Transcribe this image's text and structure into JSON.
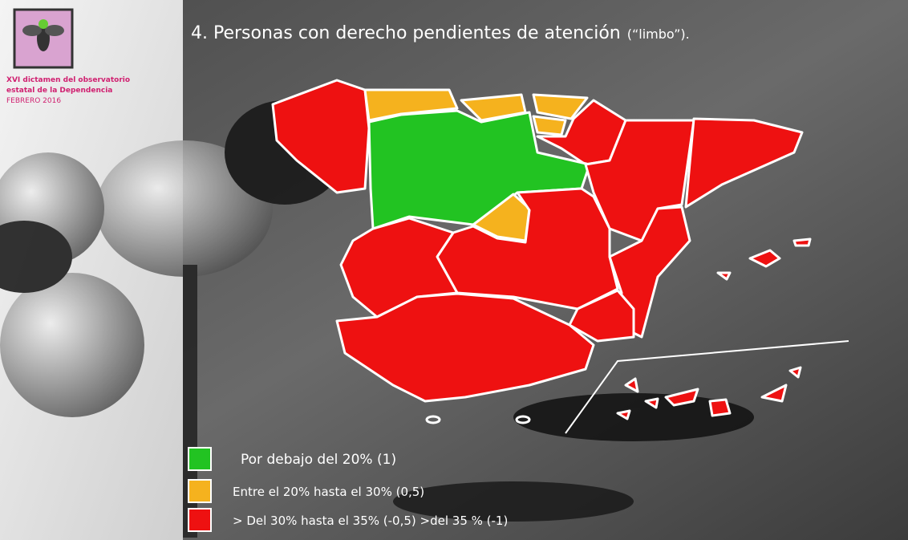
{
  "header": {
    "title": "4. Personas con derecho pendientes de atención",
    "title_note": "(“limbo”)."
  },
  "sidebar": {
    "lines": [
      "XVI dictamen del observatorio",
      "estatal de la Dependencia",
      "FEBRERO 2016"
    ]
  },
  "legend": {
    "items": [
      {
        "label": "Por debajo del 20% (1)",
        "color": "#22c322"
      },
      {
        "label": "Entre el 20% hasta el 30% (0,5)",
        "color": "#f5b21e"
      },
      {
        "label": "> Del 30% hasta el 35% (-0,5)  >del 35 %   (-1)",
        "color": "#ee1111"
      }
    ]
  }
}
